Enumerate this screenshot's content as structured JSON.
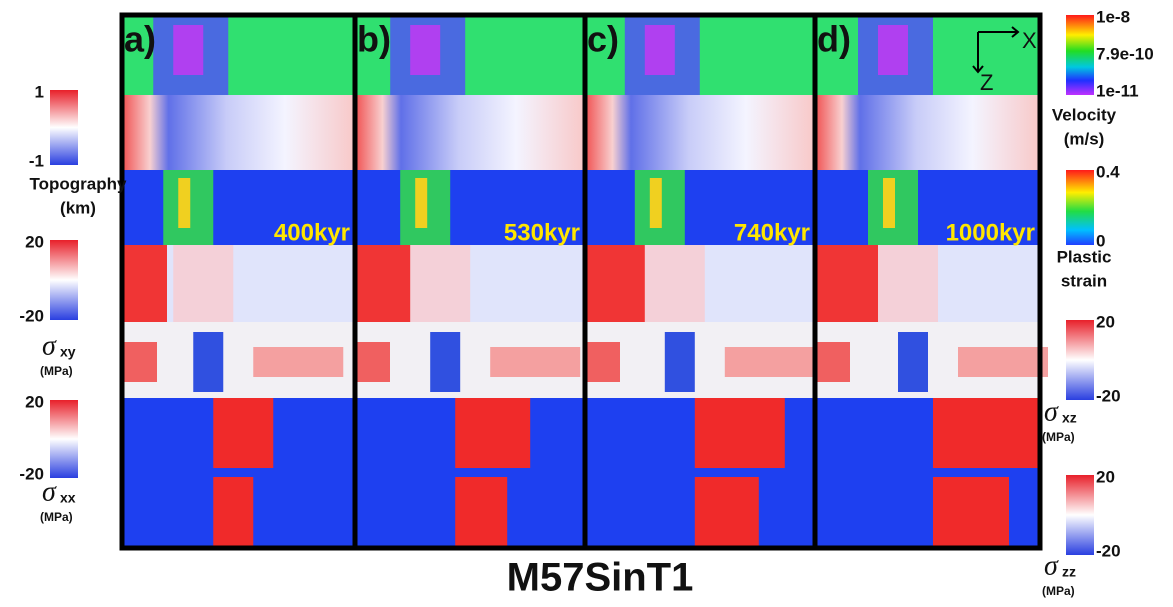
{
  "title": "M57SinT1",
  "panels": [
    {
      "label": "a)",
      "time": "400kyr"
    },
    {
      "label": "b)",
      "time": "530kyr"
    },
    {
      "label": "c)",
      "time": "740kyr"
    },
    {
      "label": "d)",
      "time": "1000kyr"
    }
  ],
  "axes": {
    "x": "X",
    "z": "Z"
  },
  "colorbars": [
    {
      "ticks": [
        "1",
        "-1"
      ],
      "label": [
        "Topography",
        "(km)"
      ]
    },
    {
      "ticks": [
        "20",
        "-20"
      ],
      "symbol": "σ",
      "subscript": "xy",
      "unit": "(MPa)"
    },
    {
      "ticks": [
        "20",
        "-20"
      ],
      "symbol": "σ",
      "subscript": "xx",
      "unit": "(MPa)"
    },
    {
      "ticks": [
        "1e-8",
        "7.9e-10",
        "1e-11"
      ],
      "label": [
        "Velocity",
        "(m/s)"
      ]
    },
    {
      "ticks": [
        "0.4",
        "0"
      ],
      "label": [
        "Plastic",
        "strain"
      ]
    },
    {
      "ticks": [
        "20",
        "-20"
      ],
      "symbol": "σ",
      "subscript": "xz",
      "unit": "(MPa)"
    },
    {
      "ticks": [
        "20",
        "-20"
      ],
      "symbol": "σ",
      "subscript": "zz",
      "unit": "(MPa)"
    }
  ]
}
